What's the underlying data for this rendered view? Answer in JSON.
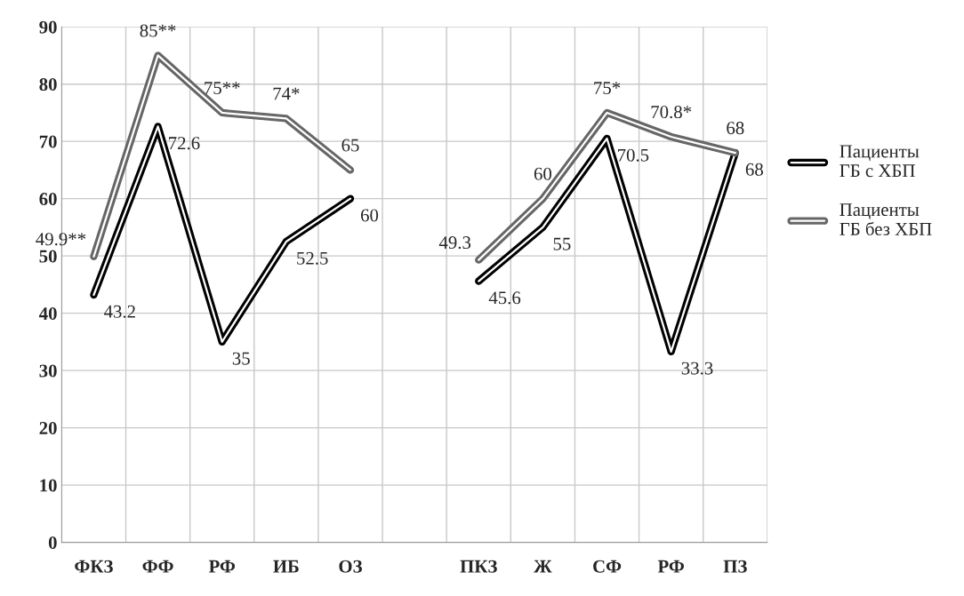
{
  "chart_data": {
    "type": "line",
    "categories": [
      "ФКЗ",
      "ФФ",
      "РФ",
      "ИБ",
      "ОЗ",
      null,
      "ПКЗ",
      "Ж",
      "СФ",
      "РФ",
      "ПЗ"
    ],
    "series": [
      {
        "name": "Пациенты ГБ с ХБП",
        "color": "#000000",
        "values": [
          43.2,
          72.6,
          35,
          52.5,
          60,
          null,
          45.6,
          55,
          70.5,
          33.3,
          68
        ],
        "value_labels": [
          "43.2",
          "72.6",
          "35",
          "52.5",
          "60",
          null,
          "45.6",
          "55",
          "70.5",
          "33.3",
          "68"
        ]
      },
      {
        "name": "Пациенты ГБ без ХБП",
        "color": "#666666",
        "values": [
          49.9,
          85,
          75,
          74,
          65,
          null,
          49.3,
          60,
          75,
          70.8,
          68
        ],
        "value_labels": [
          "49.9**",
          "85**",
          "75**",
          "74*",
          "65",
          null,
          "49.3",
          "60",
          "75*",
          "70.8*",
          "68"
        ]
      }
    ],
    "ylim": [
      0,
      90
    ],
    "yticks": [
      0,
      10,
      20,
      30,
      40,
      50,
      60,
      70,
      80,
      90
    ],
    "grid": true,
    "legend": "right",
    "line_style": "solid",
    "marker": "none"
  }
}
